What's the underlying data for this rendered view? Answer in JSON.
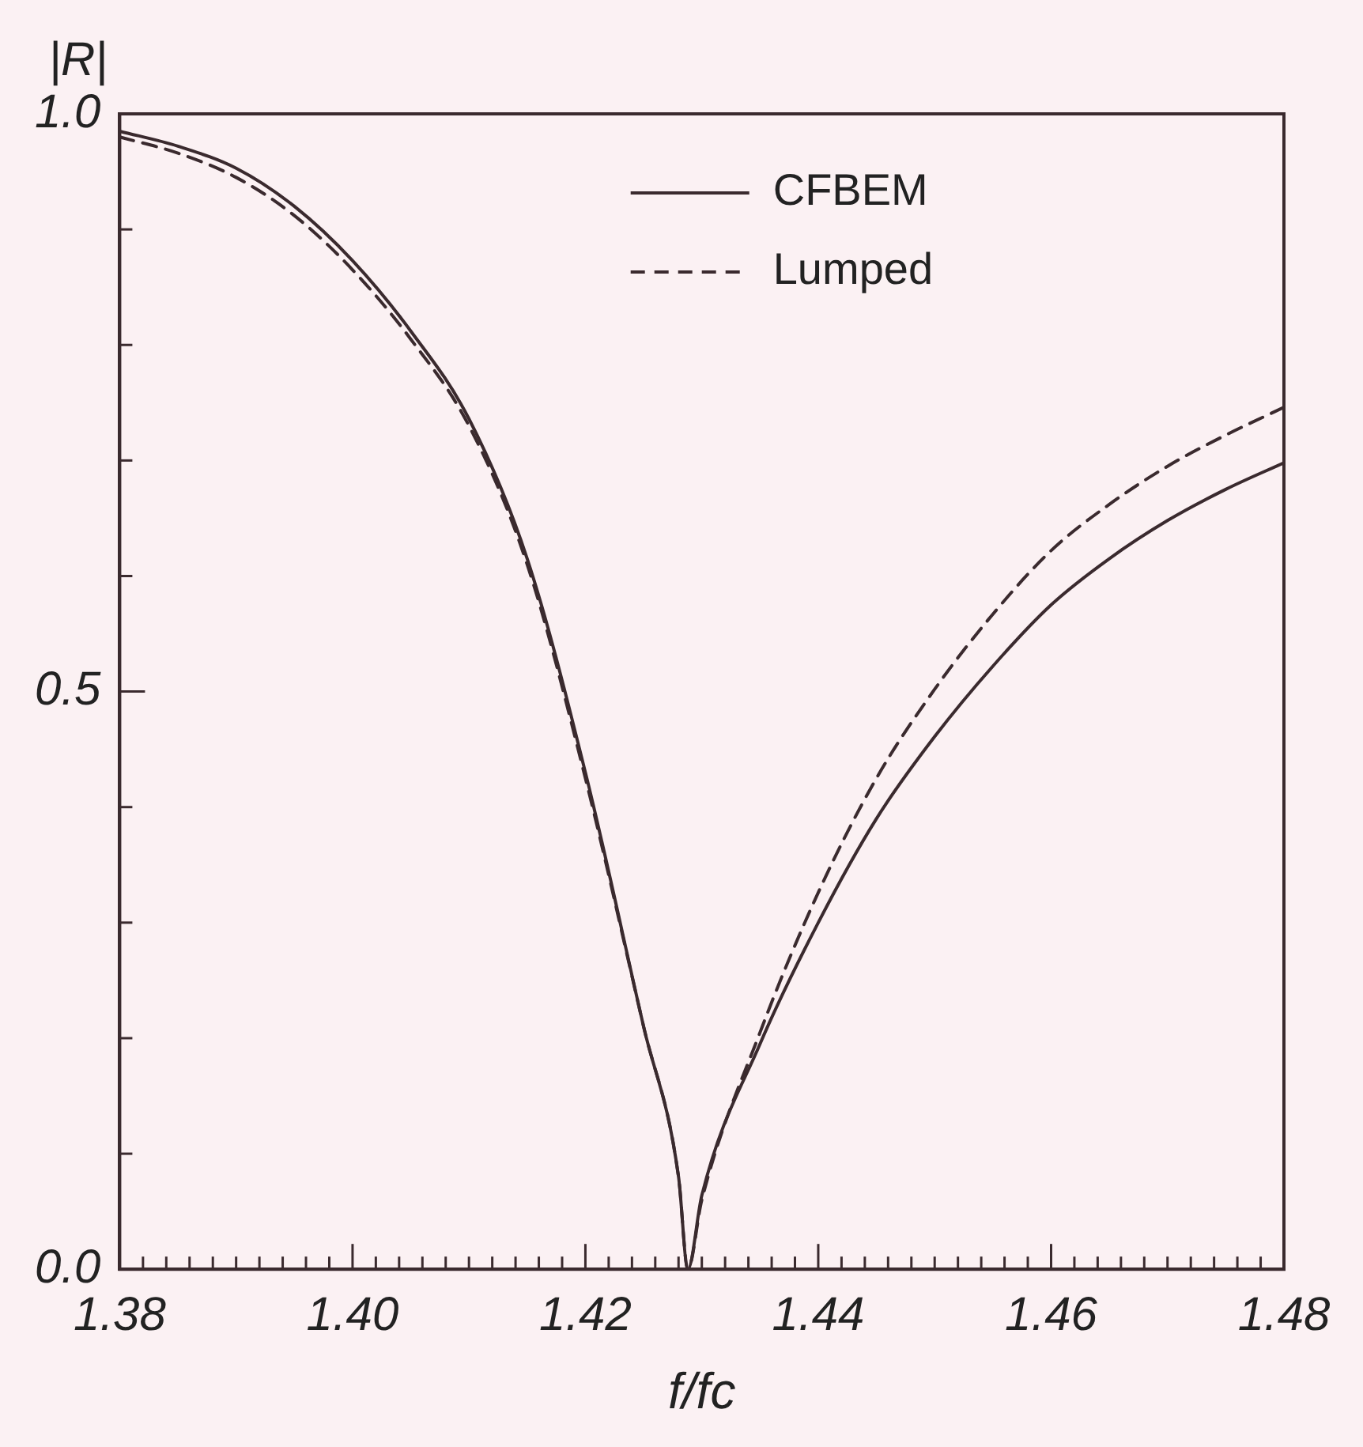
{
  "chart_data": {
    "type": "line",
    "xlabel": "f/fc",
    "ylabel": "|R|",
    "xlim": [
      1.38,
      1.48
    ],
    "ylim": [
      0,
      1
    ],
    "xticks": [
      1.38,
      {
        "value": 1.382,
        "label": null
      },
      {
        "value": 1.384,
        "label": null
      },
      {
        "value": 1.386,
        "label": null
      },
      {
        "value": 1.388,
        "label": null
      },
      {
        "value": 1.39,
        "label": null
      },
      {
        "value": 1.392,
        "label": null
      },
      {
        "value": 1.394,
        "label": null
      },
      {
        "value": 1.396,
        "label": null
      },
      {
        "value": 1.398,
        "label": null
      },
      {
        "value": 1.4,
        "label": "1.40"
      },
      {
        "value": 1.402,
        "label": null
      },
      {
        "value": 1.404,
        "label": null
      },
      {
        "value": 1.406,
        "label": null
      },
      {
        "value": 1.408,
        "label": null
      },
      {
        "value": 1.41,
        "label": null
      },
      {
        "value": 1.412,
        "label": null
      },
      {
        "value": 1.414,
        "label": null
      },
      {
        "value": 1.416,
        "label": null
      },
      {
        "value": 1.418,
        "label": null
      },
      1.42,
      {
        "value": 1.422,
        "label": null
      },
      {
        "value": 1.424,
        "label": null
      },
      {
        "value": 1.426,
        "label": null
      },
      {
        "value": 1.428,
        "label": null
      },
      {
        "value": 1.43,
        "label": null
      },
      {
        "value": 1.432,
        "label": null
      },
      {
        "value": 1.434,
        "label": null
      },
      {
        "value": 1.436,
        "label": null
      },
      {
        "value": 1.438,
        "label": null
      },
      {
        "value": 1.44,
        "label": "1.44"
      },
      {
        "value": 1.442,
        "label": null
      },
      {
        "value": 1.444,
        "label": null
      },
      {
        "value": 1.446,
        "label": null
      },
      {
        "value": 1.448,
        "label": null
      },
      {
        "value": 1.45,
        "label": null
      },
      {
        "value": 1.452,
        "label": null
      },
      {
        "value": 1.454,
        "label": null
      },
      {
        "value": 1.456,
        "label": null
      },
      {
        "value": 1.458,
        "label": null
      },
      1.46,
      {
        "value": 1.462,
        "label": null
      },
      {
        "value": 1.464,
        "label": null
      },
      {
        "value": 1.466,
        "label": null
      },
      {
        "value": 1.468,
        "label": null
      },
      {
        "value": 1.47,
        "label": null
      },
      {
        "value": 1.472,
        "label": null
      },
      {
        "value": 1.474,
        "label": null
      },
      {
        "value": 1.476,
        "label": null
      },
      {
        "value": 1.478,
        "label": null
      },
      1.48
    ],
    "yticks": [
      {
        "value": 0,
        "label": "0.0"
      },
      {
        "value": 0.1,
        "label": null
      },
      {
        "value": 0.2,
        "label": null
      },
      {
        "value": 0.3,
        "label": null
      },
      {
        "value": 0.4,
        "label": null
      },
      {
        "value": 0.5,
        "label": "0.5"
      },
      {
        "value": 0.6,
        "label": null
      },
      {
        "value": 0.7,
        "label": null
      },
      {
        "value": 0.8,
        "label": null
      },
      {
        "value": 0.9,
        "label": null
      },
      {
        "value": 1,
        "label": "1.0"
      }
    ],
    "legend": "top",
    "grid": false,
    "marker": "none",
    "series": [
      {
        "name": "CFBEM",
        "color": "#3a2a2e",
        "line_style": "solid",
        "x": [
          1.38,
          1.385,
          1.39,
          1.395,
          1.4,
          1.405,
          1.41,
          1.415,
          1.42,
          1.425,
          1.428,
          1.4288,
          1.43,
          1.435,
          1.44,
          1.445,
          1.45,
          1.455,
          1.46,
          1.465,
          1.47,
          1.475,
          1.48
        ],
        "values": [
          0.985,
          0.972,
          0.953,
          0.92,
          0.873,
          0.812,
          0.736,
          0.615,
          0.43,
          0.21,
          0.08,
          0,
          0.064,
          0.195,
          0.3,
          0.39,
          0.461,
          0.522,
          0.575,
          0.615,
          0.648,
          0.675,
          0.698
        ]
      },
      {
        "name": "Lumped",
        "color": "#3a2a2e",
        "line_style": "dashed",
        "x": [
          1.38,
          1.385,
          1.39,
          1.395,
          1.4,
          1.405,
          1.41,
          1.415,
          1.42,
          1.425,
          1.428,
          1.4288,
          1.43,
          1.435,
          1.44,
          1.445,
          1.45,
          1.455,
          1.46,
          1.465,
          1.47,
          1.475,
          1.48
        ],
        "values": [
          0.98,
          0.966,
          0.945,
          0.912,
          0.865,
          0.805,
          0.73,
          0.61,
          0.425,
          0.21,
          0.08,
          0,
          0.06,
          0.205,
          0.326,
          0.425,
          0.502,
          0.567,
          0.622,
          0.662,
          0.695,
          0.722,
          0.746
        ]
      }
    ]
  }
}
